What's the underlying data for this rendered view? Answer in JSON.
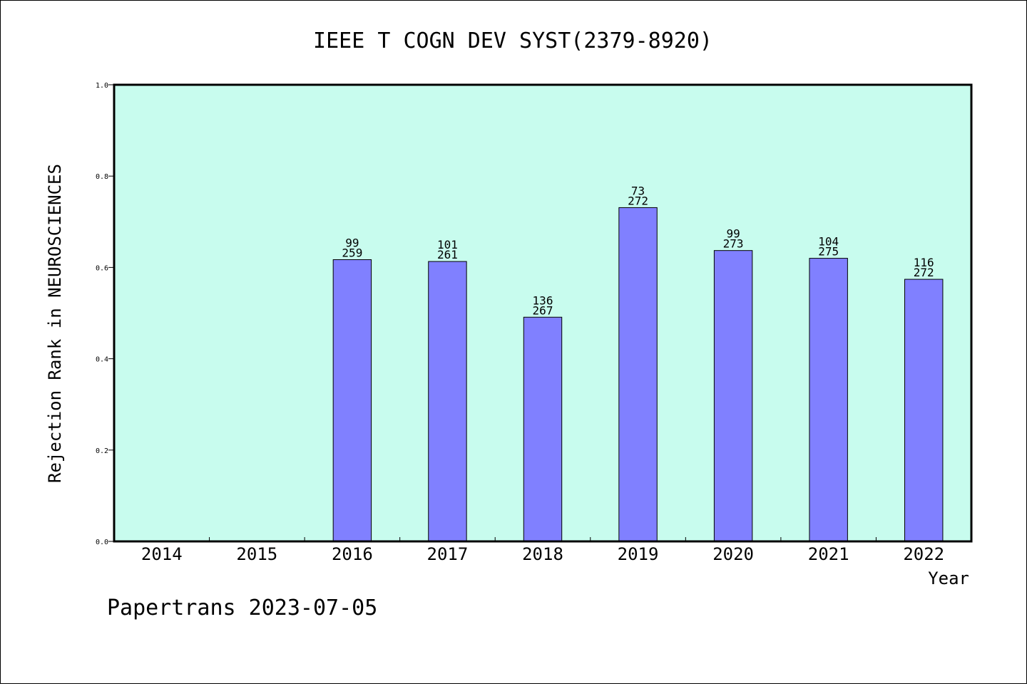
{
  "chart_data": {
    "type": "bar",
    "title": "IEEE T COGN DEV SYST(2379-8920)",
    "xlabel": "Year",
    "ylabel": "Rejection Rank in NEUROSCIENCES",
    "categories": [
      "2014",
      "2015",
      "2016",
      "2017",
      "2018",
      "2019",
      "2020",
      "2021",
      "2022"
    ],
    "values": [
      null,
      null,
      0.617,
      0.613,
      0.491,
      0.731,
      0.637,
      0.62,
      0.574
    ],
    "rank_labels": [
      "",
      "",
      "99",
      "101",
      "136",
      "73",
      "99",
      "104",
      "116"
    ],
    "total_labels": [
      "",
      "",
      "259",
      "261",
      "267",
      "272",
      "273",
      "275",
      "272"
    ],
    "ylim": [
      0,
      1
    ],
    "yticks": [
      "0.0",
      "0.2",
      "0.4",
      "0.6",
      "0.8",
      "1.0"
    ],
    "grid": false,
    "colors": {
      "plot_background": "#c8fcee",
      "bar_fill": "#8080ff",
      "bar_stroke": "#000000"
    }
  },
  "footer": {
    "text": "Papertrans 2023-07-05"
  }
}
